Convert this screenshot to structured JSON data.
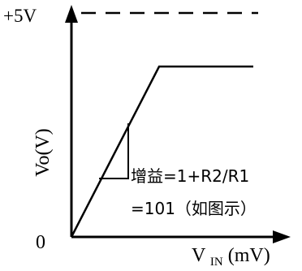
{
  "labels": {
    "supply_voltage": "+5V",
    "y_axis": "Vo(V)",
    "origin": "0",
    "x_axis_main": "V",
    "x_axis_subscript": "IN",
    "x_axis_unit": "(mV)",
    "gain_formula": "增益=1+R2/R1",
    "gain_value": "=101（如图示）"
  },
  "colors": {
    "stroke": "#000000",
    "background": "#ffffff"
  }
}
